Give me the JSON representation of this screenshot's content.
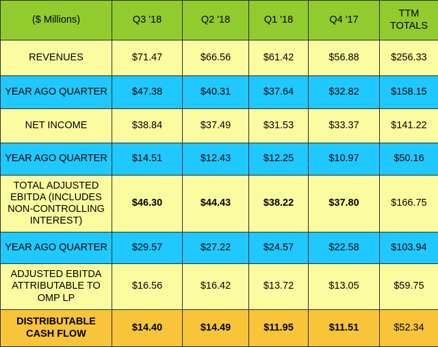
{
  "colors": {
    "header": "#92cb2e",
    "revenue_row": "#fbfba0",
    "year_ago_row": "#1fc9ff",
    "distributable_row": "#f7c43a",
    "border": "#2a2a2a"
  },
  "table": {
    "headers": [
      "($ Millions)",
      "Q3 '18",
      "Q2 '18",
      "Q1 '18",
      "Q4 '17",
      "TTM TOTALS"
    ],
    "rows": [
      {
        "label": "REVENUES",
        "values": [
          "$71.47",
          "$66.56",
          "$61.42",
          "$56.88",
          "$256.33"
        ]
      },
      {
        "label": "YEAR AGO QUARTER",
        "values": [
          "$47.38",
          "$40.31",
          "$37.64",
          "$32.82",
          "$158.15"
        ]
      },
      {
        "label": "NET INCOME",
        "values": [
          "$38.84",
          "$37.49",
          "$31.53",
          "$33.37",
          "$141.22"
        ]
      },
      {
        "label": "YEAR AGO QUARTER",
        "values": [
          "$14.51",
          "$12.43",
          "$12.25",
          "$10.97",
          "$50.16"
        ]
      },
      {
        "label": "TOTAL ADJUSTED EBITDA (INCLUDES NON-CONTROLLING INTEREST)",
        "values": [
          "$46.30",
          "$44.43",
          "$38.22",
          "$37.80",
          "$166.75"
        ]
      },
      {
        "label": "YEAR AGO QUARTER",
        "values": [
          "$29.57",
          "$27.22",
          "$24.57",
          "$22.58",
          "$103.94"
        ]
      },
      {
        "label": "ADJUSTED EBITDA ATTRIBUTABLE TO OMP LP",
        "values": [
          "$16.56",
          "$16.42",
          "$13.72",
          "$13.05",
          "$59.75"
        ]
      },
      {
        "label": "DISTRIBUTABLE CASH FLOW",
        "values": [
          "$14.40",
          "$14.49",
          "$11.95",
          "$11.51",
          "$52.34"
        ]
      }
    ]
  }
}
